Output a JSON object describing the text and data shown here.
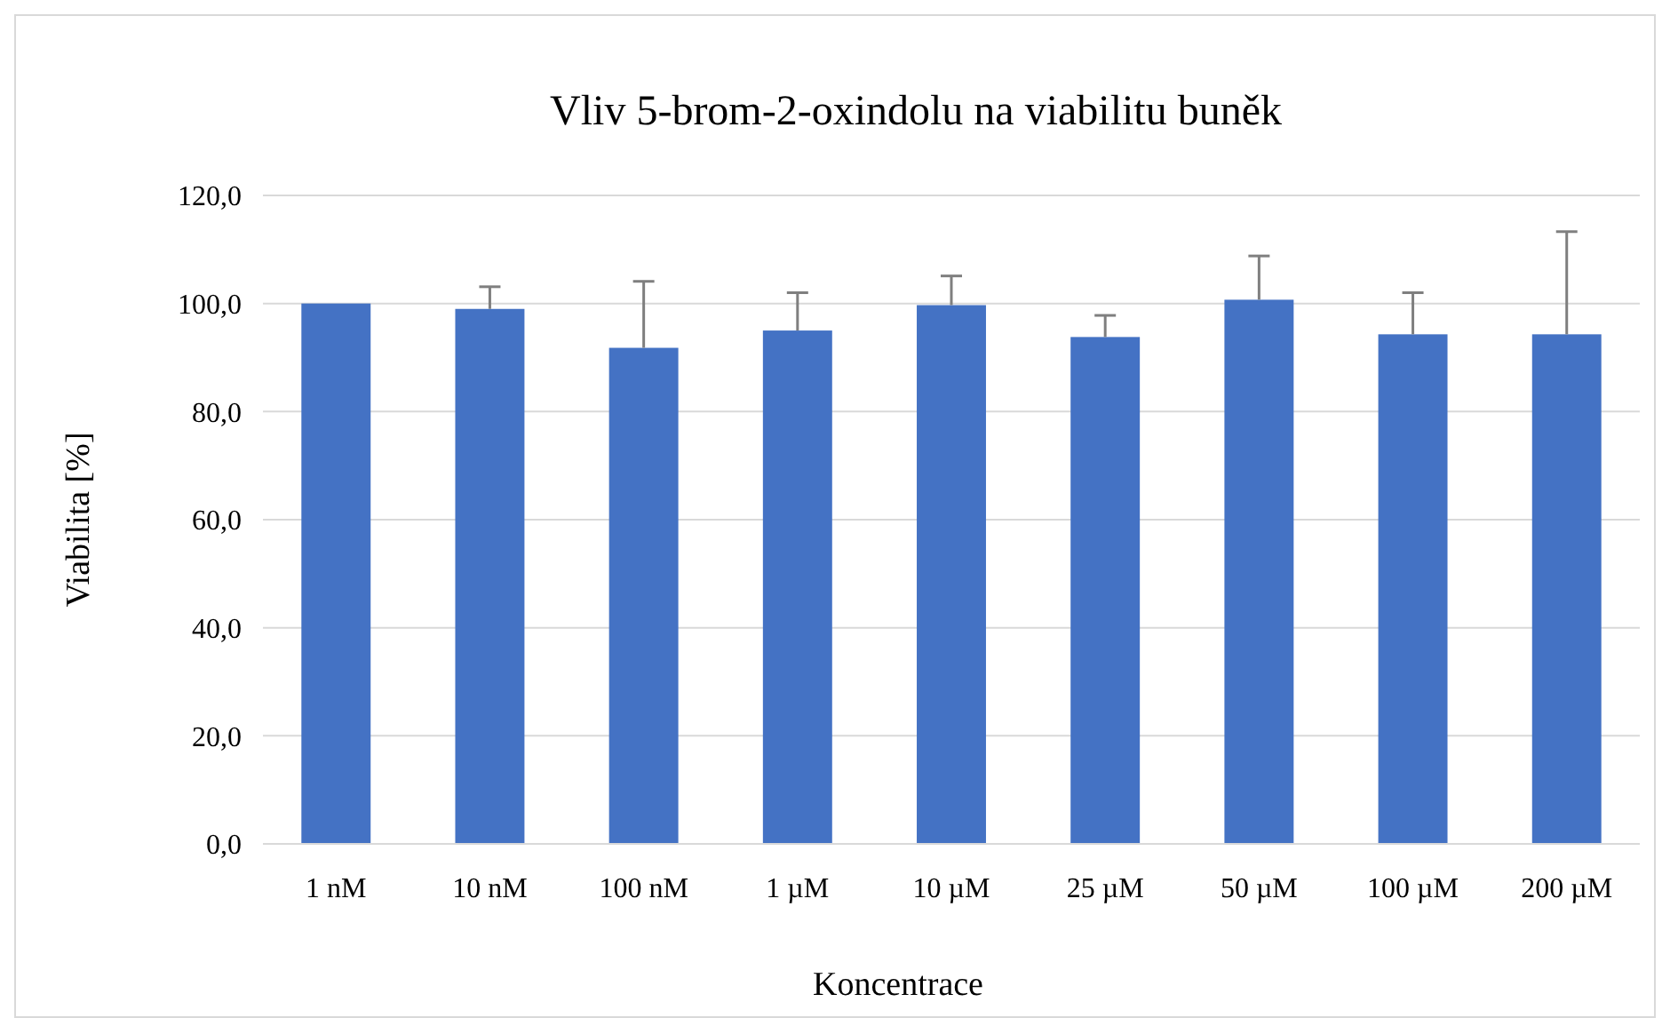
{
  "chart_data": {
    "type": "bar",
    "title": "Vliv 5-brom-2-oxindolu na viabilitu buněk",
    "xlabel": "Koncentrace",
    "ylabel": "Viabilita [%]",
    "categories": [
      "1 nM",
      "10 nM",
      "100 nM",
      "1 µM",
      "10 µM",
      "25 µM",
      "50 µM",
      "100 µM",
      "200 µM"
    ],
    "values": [
      100.0,
      99.0,
      91.8,
      95.0,
      99.7,
      93.8,
      100.7,
      94.3,
      94.3
    ],
    "errors": [
      null,
      [
        99.0,
        103.1
      ],
      [
        91.8,
        104.1
      ],
      [
        95.0,
        102.0
      ],
      [
        99.7,
        105.1
      ],
      [
        93.8,
        97.8
      ],
      [
        100.7,
        108.8
      ],
      [
        94.3,
        102.0
      ],
      [
        94.3,
        113.3
      ]
    ],
    "color": "#4472c4",
    "ylim": [
      0,
      120
    ],
    "yticks": [
      {
        "value": 0,
        "label": "0,0"
      },
      {
        "value": 20,
        "label": "20,0"
      },
      {
        "value": 40,
        "label": "40,0"
      },
      {
        "value": 60,
        "label": "60,0"
      },
      {
        "value": 80,
        "label": "80,0"
      },
      {
        "value": 100,
        "label": "100,0"
      },
      {
        "value": 120,
        "label": "120,0"
      }
    ],
    "grid": "y"
  }
}
